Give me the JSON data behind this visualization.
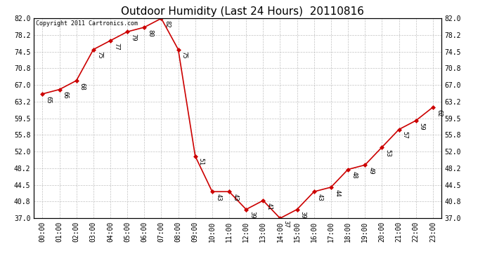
{
  "title": "Outdoor Humidity (Last 24 Hours)  20110816",
  "copyright_text": "Copyright 2011 Cartronics.com",
  "x_labels": [
    "00:00",
    "01:00",
    "02:00",
    "03:00",
    "04:00",
    "05:00",
    "06:00",
    "07:00",
    "08:00",
    "09:00",
    "10:00",
    "11:00",
    "12:00",
    "13:00",
    "14:00",
    "15:00",
    "16:00",
    "17:00",
    "18:00",
    "19:00",
    "20:00",
    "21:00",
    "22:00",
    "23:00"
  ],
  "x_values": [
    0,
    1,
    2,
    3,
    4,
    5,
    6,
    7,
    8,
    9,
    10,
    11,
    12,
    13,
    14,
    15,
    16,
    17,
    18,
    19,
    20,
    21,
    22,
    23
  ],
  "y_values": [
    65,
    66,
    68,
    75,
    77,
    79,
    80,
    82,
    75,
    51,
    43,
    43,
    39,
    41,
    37,
    39,
    43,
    44,
    48,
    49,
    53,
    57,
    59,
    62
  ],
  "point_labels": [
    "65",
    "66",
    "68",
    "75",
    "77",
    "79",
    "80",
    "82",
    "75",
    "51",
    "43",
    "43",
    "39",
    "41",
    "37",
    "39",
    "43",
    "44",
    "48",
    "49",
    "53",
    "57",
    "59",
    "62"
  ],
  "line_color": "#cc0000",
  "marker_color": "#cc0000",
  "marker_style": "D",
  "marker_size": 3,
  "bg_color": "#ffffff",
  "plot_bg_color": "#ffffff",
  "grid_color": "#bbbbbb",
  "title_fontsize": 11,
  "label_fontsize": 6.5,
  "tick_fontsize": 7,
  "y_min": 37.0,
  "y_max": 82.0,
  "y_ticks": [
    37.0,
    40.8,
    44.5,
    48.2,
    52.0,
    55.8,
    59.5,
    63.2,
    67.0,
    70.8,
    74.5,
    78.2,
    82.0
  ]
}
